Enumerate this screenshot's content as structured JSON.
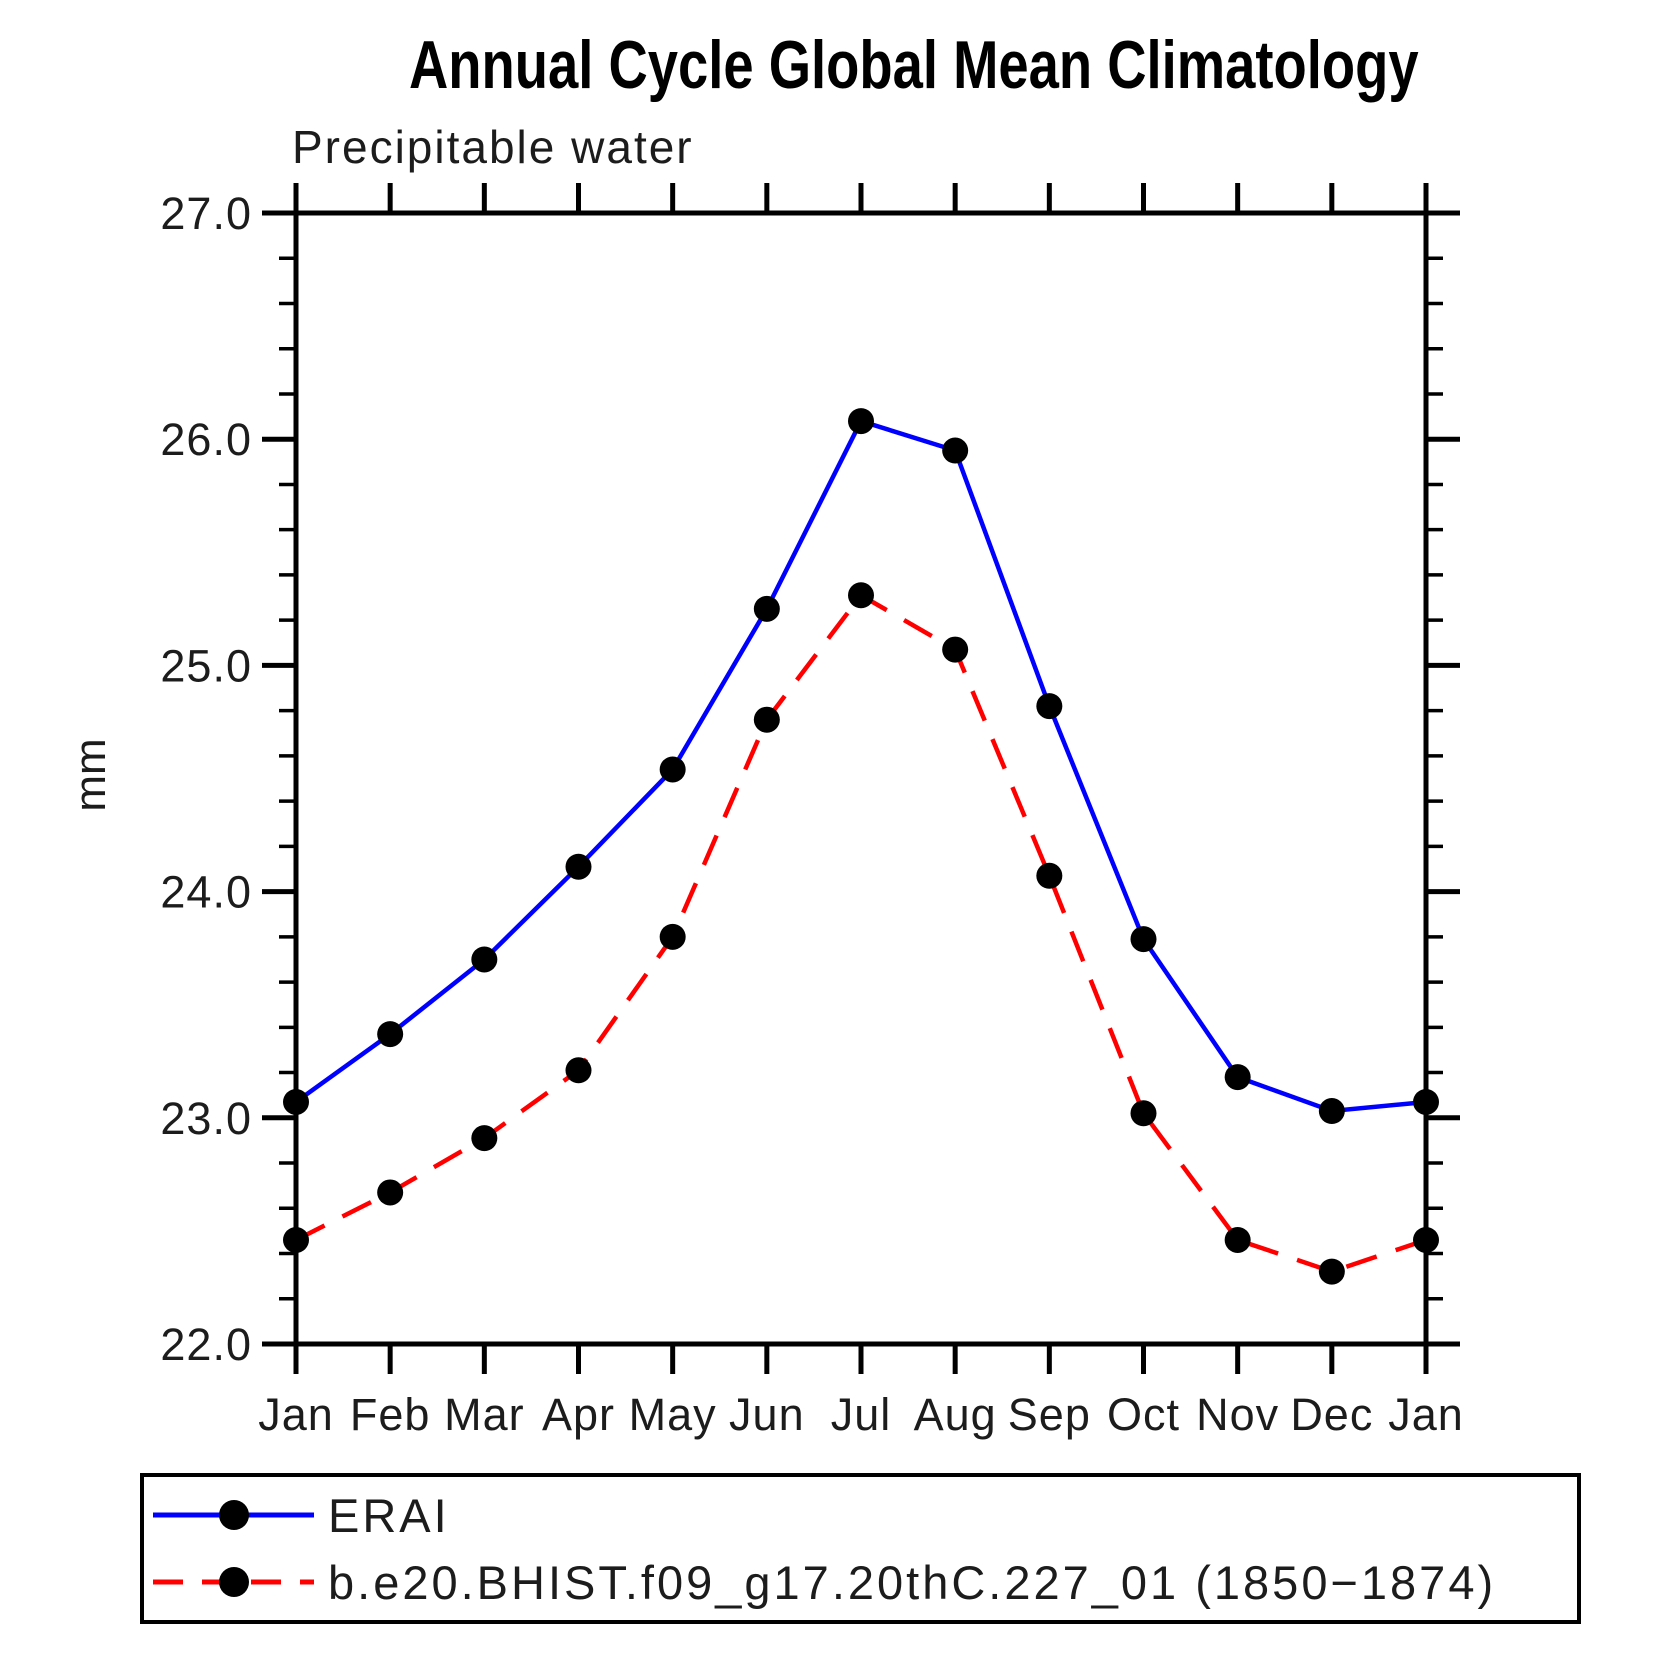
{
  "chart_data": {
    "type": "line",
    "title": "Annual Cycle Global Mean Climatology",
    "subtitle": "Precipitable water",
    "xlabel": "",
    "ylabel": "mm",
    "categories": [
      "Jan",
      "Feb",
      "Mar",
      "Apr",
      "May",
      "Jun",
      "Jul",
      "Aug",
      "Sep",
      "Oct",
      "Nov",
      "Dec",
      "Jan"
    ],
    "ylim": [
      22.0,
      27.0
    ],
    "y_tick_labels": [
      "27.0",
      "26.0",
      "25.0",
      "24.0",
      "23.0",
      "22.0"
    ],
    "y_minor_step": 0.2,
    "grid": false,
    "legend_position": "bottom",
    "marker_color": "#000000",
    "axis_color": "#000000",
    "series": [
      {
        "name": "ERAI",
        "color": "#0000ff",
        "style": "solid",
        "values": [
          23.07,
          23.37,
          23.7,
          24.11,
          24.54,
          25.25,
          26.08,
          25.95,
          24.82,
          23.79,
          23.18,
          23.03,
          23.07
        ]
      },
      {
        "name": "b.e20.BHIST.f09_g17.20thC.227_01 (1850−1874)",
        "color": "#ff0000",
        "style": "dashed",
        "values": [
          22.46,
          22.67,
          22.91,
          23.21,
          23.8,
          24.76,
          25.31,
          25.07,
          24.07,
          23.02,
          22.46,
          22.32,
          22.46
        ]
      }
    ]
  }
}
